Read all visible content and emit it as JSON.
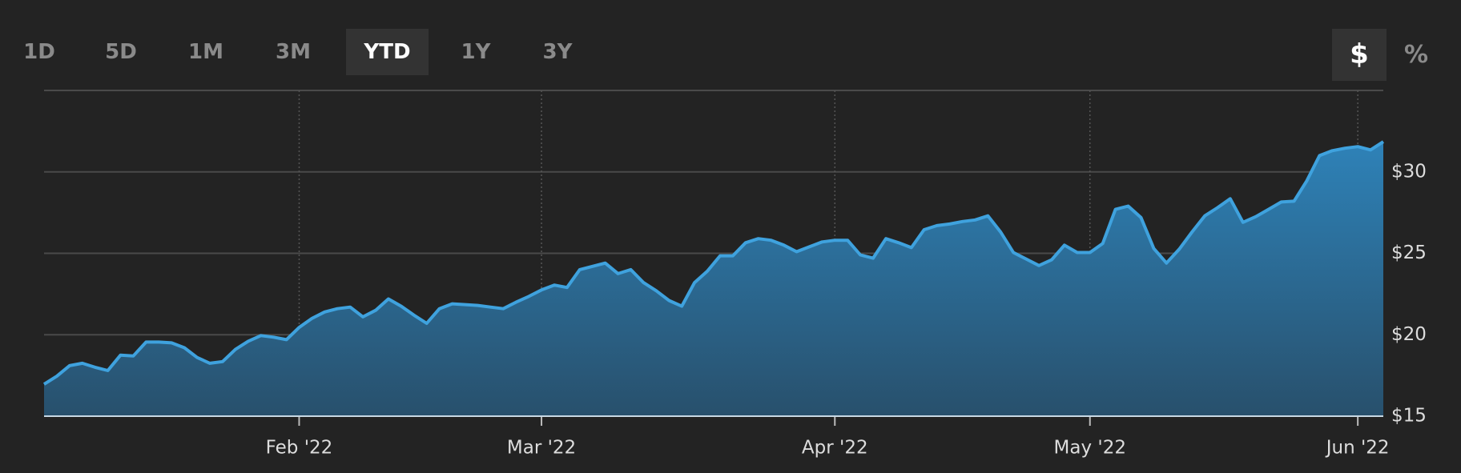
{
  "range_buttons": [
    {
      "label": "1D",
      "active": false
    },
    {
      "label": "5D",
      "active": false
    },
    {
      "label": "1M",
      "active": false
    },
    {
      "label": "3M",
      "active": false
    },
    {
      "label": "YTD",
      "active": true
    },
    {
      "label": "1Y",
      "active": false
    },
    {
      "label": "3Y",
      "active": false
    }
  ],
  "unit_buttons": [
    {
      "label": "$",
      "active": true
    },
    {
      "label": "%",
      "active": false
    }
  ],
  "chart_data": {
    "type": "area",
    "color": "#3fa2de",
    "values": [
      16.96,
      17.45,
      18.1,
      18.25,
      18.0,
      17.8,
      18.75,
      18.7,
      19.55,
      19.55,
      19.5,
      19.2,
      18.6,
      18.25,
      18.35,
      19.1,
      19.6,
      19.95,
      19.85,
      19.7,
      20.45,
      21.0,
      21.4,
      21.6,
      21.7,
      21.1,
      21.5,
      22.2,
      21.75,
      21.2,
      20.7,
      21.6,
      21.9,
      21.85,
      21.8,
      21.7,
      21.6,
      22.0,
      22.35,
      22.75,
      23.05,
      22.9,
      24.0,
      24.2,
      24.4,
      23.75,
      24.0,
      23.2,
      22.7,
      22.1,
      21.75,
      23.2,
      23.9,
      24.85,
      24.85,
      25.65,
      25.9,
      25.8,
      25.5,
      25.1,
      25.4,
      25.7,
      25.8,
      25.8,
      24.9,
      24.7,
      25.9,
      25.65,
      25.35,
      26.45,
      26.7,
      26.8,
      26.95,
      27.05,
      27.3,
      26.3,
      25.05,
      24.65,
      24.25,
      24.6,
      25.5,
      25.05,
      25.05,
      25.6,
      27.7,
      27.9,
      27.2,
      25.3,
      24.4,
      25.25,
      26.3,
      27.3,
      27.8,
      28.35,
      26.9,
      27.25,
      27.7,
      28.15,
      28.2,
      29.45,
      31.0,
      31.3,
      31.45,
      31.55,
      31.35,
      31.85
    ],
    "xlim": [
      0,
      105
    ],
    "xticks": [
      {
        "value": 20,
        "label": "Feb '22"
      },
      {
        "value": 39,
        "label": "Mar '22"
      },
      {
        "value": 62,
        "label": "Apr '22"
      },
      {
        "value": 82,
        "label": "May '22"
      },
      {
        "value": 103,
        "label": "Jun '22"
      }
    ],
    "ylim": [
      15,
      35
    ],
    "yticks": [
      {
        "value": 15,
        "label": "$15"
      },
      {
        "value": 20,
        "label": "$20"
      },
      {
        "value": 25,
        "label": "$25"
      },
      {
        "value": 30,
        "label": "$30"
      }
    ],
    "grid": true
  }
}
